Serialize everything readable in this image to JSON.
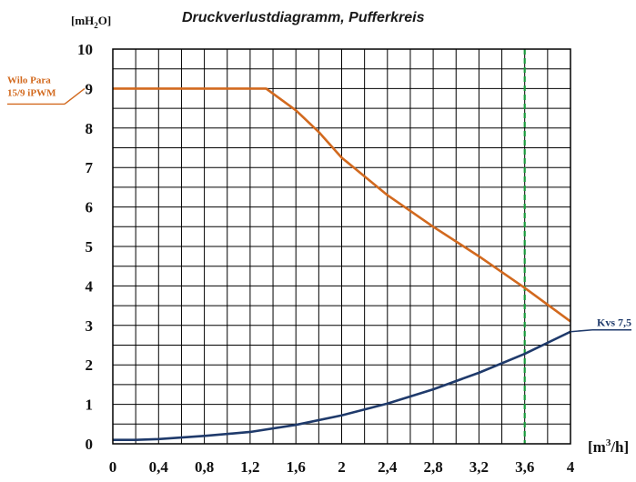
{
  "chart_data": {
    "type": "line",
    "title": "Druckverlustdiagramm, Pufferkreis",
    "ylabel": {
      "prefix": "[mH",
      "sub": "2",
      "suffix": "O]"
    },
    "xlabel": {
      "prefix": "[m",
      "sup": "3",
      "suffix": "/h]"
    },
    "xlim": [
      0,
      4
    ],
    "ylim": [
      0,
      10
    ],
    "grid": true,
    "xticks": [
      0,
      0.2,
      0.4,
      0.6,
      0.8,
      1.0,
      1.2,
      1.4,
      1.6,
      1.8,
      2.0,
      2.2,
      2.4,
      2.6,
      2.8,
      3.0,
      3.2,
      3.4,
      3.6,
      3.8,
      4.0
    ],
    "xtick_labels": [
      {
        "x": 0,
        "text": "0"
      },
      {
        "x": 0.4,
        "text": "0,4"
      },
      {
        "x": 0.8,
        "text": "0,8"
      },
      {
        "x": 1.2,
        "text": "1,2"
      },
      {
        "x": 1.6,
        "text": "1,6"
      },
      {
        "x": 2.0,
        "text": "2"
      },
      {
        "x": 2.4,
        "text": "2,4"
      },
      {
        "x": 2.8,
        "text": "2,8"
      },
      {
        "x": 3.2,
        "text": "3,2"
      },
      {
        "x": 3.6,
        "text": "3,6"
      },
      {
        "x": 4.0,
        "text": "4"
      }
    ],
    "yticks": [
      0,
      0.5,
      1,
      1.5,
      2,
      2.5,
      3,
      3.5,
      4,
      4.5,
      5,
      5.5,
      6,
      6.5,
      7,
      7.5,
      8,
      8.5,
      9,
      9.5,
      10
    ],
    "ytick_labels": [
      {
        "y": 0,
        "text": "0"
      },
      {
        "y": 1,
        "text": "1"
      },
      {
        "y": 2,
        "text": "2"
      },
      {
        "y": 3,
        "text": "3"
      },
      {
        "y": 4,
        "text": "4"
      },
      {
        "y": 5,
        "text": "5"
      },
      {
        "y": 6,
        "text": "6"
      },
      {
        "y": 7,
        "text": "7"
      },
      {
        "y": 8,
        "text": "8"
      },
      {
        "y": 9,
        "text": "9"
      },
      {
        "y": 10,
        "text": "10"
      }
    ],
    "series": [
      {
        "name": "Wilo Para 15/9 iPWM",
        "label_lines": [
          "Wilo Para",
          "15/9 iPWM"
        ],
        "color": "#d2691e",
        "x": [
          0,
          1.2,
          1.34,
          1.6,
          1.8,
          2.0,
          2.4,
          2.8,
          3.2,
          3.6,
          4.0
        ],
        "y": [
          9.0,
          9.0,
          9.0,
          8.45,
          7.9,
          7.25,
          6.3,
          5.5,
          4.75,
          3.95,
          3.1
        ]
      },
      {
        "name": "Kvs 7,5",
        "label_lines": [
          "Kvs 7,5"
        ],
        "color": "#1f3a6b",
        "x": [
          0,
          0.2,
          0.4,
          0.8,
          1.2,
          1.6,
          2.0,
          2.4,
          2.8,
          3.2,
          3.6,
          4.0
        ],
        "y": [
          0.1,
          0.1,
          0.12,
          0.2,
          0.3,
          0.48,
          0.72,
          1.02,
          1.38,
          1.8,
          2.28,
          2.84
        ]
      }
    ],
    "reference_line": {
      "x": 3.6,
      "color": "#1a9b3c",
      "style": "dashed"
    }
  }
}
